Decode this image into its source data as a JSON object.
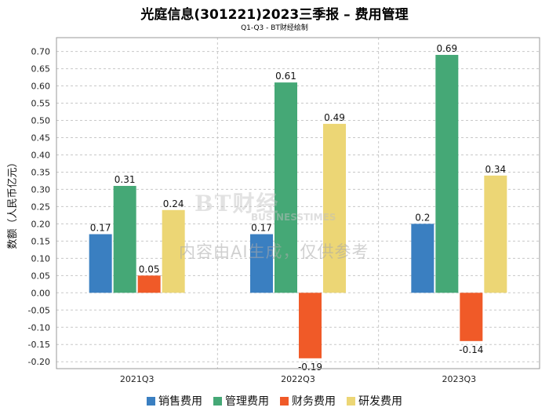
{
  "title": "光庭信息(301221)2023三季报 – 费用管理",
  "subtitle": "Q1-Q3 - BT财经绘制",
  "watermark": {
    "logo": "BT财经",
    "sub": "BUSINESSTIMES",
    "text": "内容由AI生成，仅供参考"
  },
  "chart_data": {
    "type": "bar",
    "title": "光庭信息(301221)2023三季报 – 费用管理",
    "subtitle": "Q1-Q3 - BT财经绘制",
    "xlabel": "",
    "ylabel": "数额（人民币亿元）",
    "categories": [
      "2021Q3",
      "2022Q3",
      "2023Q3"
    ],
    "ylim": [
      -0.22,
      0.74
    ],
    "yticks": [
      -0.2,
      -0.15,
      -0.1,
      -0.05,
      0.0,
      0.05,
      0.1,
      0.15,
      0.2,
      0.25,
      0.3,
      0.35,
      0.4,
      0.45,
      0.5,
      0.55,
      0.6,
      0.65,
      0.7
    ],
    "grid": true,
    "legend_position": "bottom",
    "series": [
      {
        "name": "销售费用",
        "color": "#3a7fc1",
        "values": [
          0.17,
          0.17,
          0.2
        ]
      },
      {
        "name": "管理费用",
        "color": "#45a876",
        "values": [
          0.31,
          0.61,
          0.69
        ]
      },
      {
        "name": "财务费用",
        "color": "#f05a28",
        "values": [
          0.05,
          -0.19,
          -0.14
        ]
      },
      {
        "name": "研发费用",
        "color": "#ecd675",
        "values": [
          0.24,
          0.49,
          0.34
        ]
      }
    ]
  }
}
